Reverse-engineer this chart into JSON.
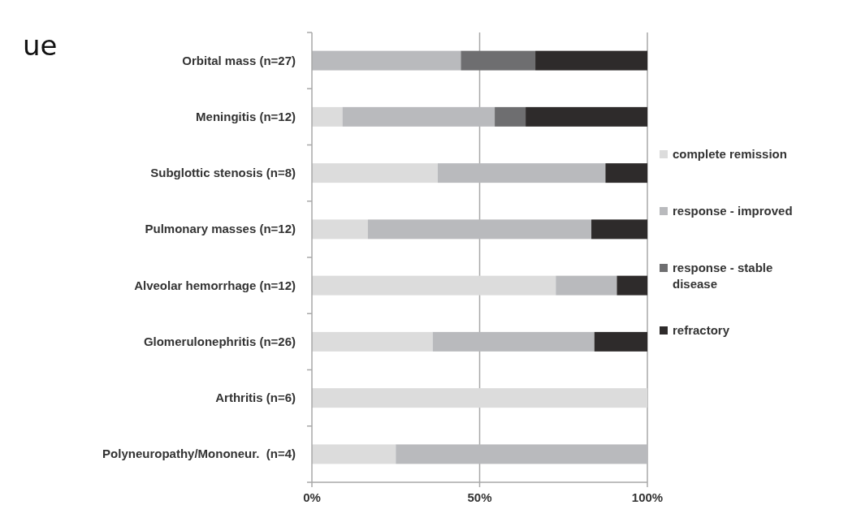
{
  "chart_data": {
    "type": "bar",
    "orientation": "horizontal",
    "stacked": true,
    "categories": [
      "Orbital mass (n=27)",
      "Meningitis (n=12)",
      "Subglottic stenosis (n=8)",
      "Pulmonary masses (n=12)",
      "Alveolar hemorrhage (n=12)",
      "Glomerulonephritis (n=26)",
      "Arthritis (n=6)",
      "Polyneuropathy/Mononeur.  (n=4)"
    ],
    "series": [
      {
        "name": "complete remission",
        "color": "#dcdcdc",
        "values": [
          0,
          9.1,
          37.5,
          16.7,
          72.7,
          36,
          100,
          25
        ]
      },
      {
        "name": "response - improved",
        "color": "#b9babd",
        "values": [
          44.4,
          45.4,
          50,
          66.6,
          18.2,
          48.2,
          0,
          75
        ]
      },
      {
        "name": "response - stable disease",
        "color": "#6e6e70",
        "values": [
          22.2,
          9.2,
          0,
          0,
          0,
          0,
          0,
          0
        ]
      },
      {
        "name": "refractory",
        "color": "#2e2b2b",
        "values": [
          33.4,
          36.3,
          12.5,
          16.7,
          9.1,
          15.8,
          0,
          0
        ]
      }
    ],
    "xlim": [
      0,
      100
    ],
    "xticks": [
      {
        "value": 0,
        "label": "0%"
      },
      {
        "value": 50,
        "label": "50%"
      },
      {
        "value": 100,
        "label": "100%"
      }
    ],
    "grid": "x",
    "legend": "right",
    "annotations": [
      "ue"
    ]
  }
}
